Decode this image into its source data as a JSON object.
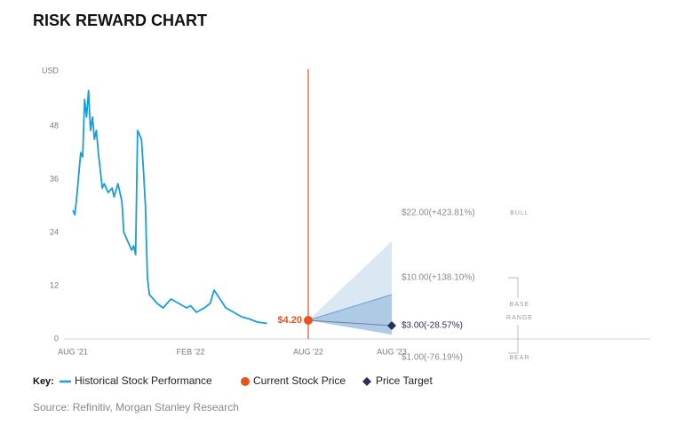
{
  "chart_data": {
    "type": "risk-reward",
    "title": "RISK REWARD CHART",
    "y_unit_label": "USD",
    "ylim": [
      0,
      60
    ],
    "yticks": [
      0,
      12,
      24,
      36,
      48
    ],
    "xlim": [
      0,
      24
    ],
    "xticks": [
      {
        "value": 0,
        "label": "AUG '21"
      },
      {
        "value": 6,
        "label": "FEB '22"
      },
      {
        "value": 12,
        "label": "AUG '22"
      },
      {
        "value": 24,
        "label": "AUG '23"
      }
    ],
    "series": [
      {
        "name": "Historical Stock Performance",
        "color": "#1a9ed9",
        "x": [
          0,
          0.1,
          0.2,
          0.4,
          0.5,
          0.6,
          0.7,
          0.8,
          0.9,
          1.0,
          1.1,
          1.2,
          1.3,
          1.5,
          1.6,
          1.8,
          2.0,
          2.1,
          2.3,
          2.5,
          2.6,
          2.8,
          3.0,
          3.1,
          3.2,
          3.3,
          3.4,
          3.5,
          3.6,
          3.7,
          3.8,
          3.9,
          4.1,
          4.3,
          4.6,
          5.0,
          5.4,
          5.8,
          6.0,
          6.3,
          6.7,
          7.0,
          7.2,
          7.5,
          7.8,
          8.2,
          8.6,
          9.0,
          9.4,
          9.9
        ],
        "values": [
          29,
          28,
          32,
          42,
          41,
          54,
          50,
          56,
          47,
          50,
          45,
          47,
          42,
          34,
          35,
          33,
          34,
          32,
          35,
          31,
          24,
          22,
          20,
          21,
          19,
          47,
          46,
          45,
          38,
          30,
          14,
          10,
          9,
          8,
          7,
          9,
          8,
          7,
          7.5,
          6,
          7,
          8,
          11,
          9,
          7,
          6,
          5,
          4.5,
          3.8,
          3.5
        ]
      }
    ],
    "current_price": {
      "name": "Current Stock Price",
      "color": "#e8541e",
      "x": 12,
      "value": 4.2,
      "value_label": "$4.20"
    },
    "price_target": {
      "name": "Price Target",
      "color": "#2b2d5c",
      "x": 24,
      "value": 3,
      "value_label": "$3.00(-28.57%)"
    },
    "scenarios": [
      {
        "name": "BULL",
        "value": 22,
        "value_label": "$22.00(+423.81%)"
      },
      {
        "name": "BASE",
        "value": 10,
        "value_label": "$10.00(+138.10%)"
      },
      {
        "name": "BEAR",
        "value": 1,
        "value_label": "$1.00(-76.19%)"
      }
    ],
    "range_label": "RANGE",
    "key_label": "Key:",
    "source": "Source: Refinitiv, Morgan Stanley Research"
  }
}
